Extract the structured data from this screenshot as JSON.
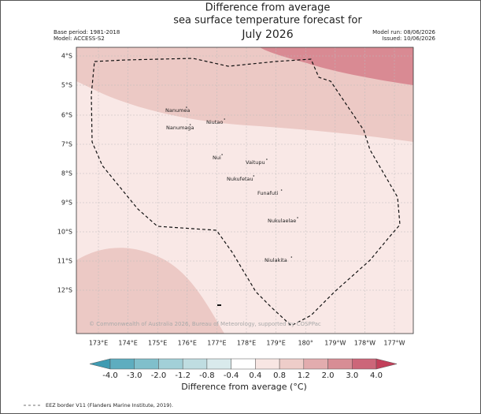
{
  "header": {
    "title_lines": [
      "Difference from average",
      "sea surface temperature forecast for"
    ],
    "month": "July 2026",
    "base_period": "Base period: 1981-2018",
    "model": "Model: ACCESS-S2",
    "model_run": "Model run: 08/06/2026",
    "issued": "Issued: 10/06/2026"
  },
  "map": {
    "lat_labels": [
      "4°S",
      "5°S",
      "6°S",
      "7°S",
      "8°S",
      "9°S",
      "10°S",
      "11°S",
      "12°S"
    ],
    "lon_labels": [
      "173°E",
      "174°E",
      "175°E",
      "176°E",
      "177°E",
      "178°E",
      "179°E",
      "180°",
      "179°W",
      "178°W",
      "177°W"
    ],
    "islands": [
      "Nanumea",
      "Niutao",
      "Nanumaga",
      "Nui",
      "Vaitupu",
      "Nukufetau",
      "Funafuti",
      "Nukulaelae",
      "Niulakita"
    ],
    "credit": "© Commonwealth of Australia 2026, Bureau of Meteorology, supported by COSPPac"
  },
  "colorbar": {
    "ticks": [
      "-4.0",
      "-3.0",
      "-2.0",
      "-1.2",
      "-0.8",
      "-0.4",
      "0.4",
      "0.8",
      "1.2",
      "2.0",
      "3.0",
      "4.0"
    ],
    "colors": [
      "#3f9bb2",
      "#5eadbf",
      "#80bfcb",
      "#a2d0d8",
      "#bfdde1",
      "#d9eaec",
      "#ffffff",
      "#f8e6e3",
      "#eecdc9",
      "#e2acae",
      "#d78d95",
      "#cc6679",
      "#c2405a"
    ],
    "label": "Difference from average (°C)"
  },
  "footer": "EEZ border V11 (Flanders Marine Institute, 2019)."
}
